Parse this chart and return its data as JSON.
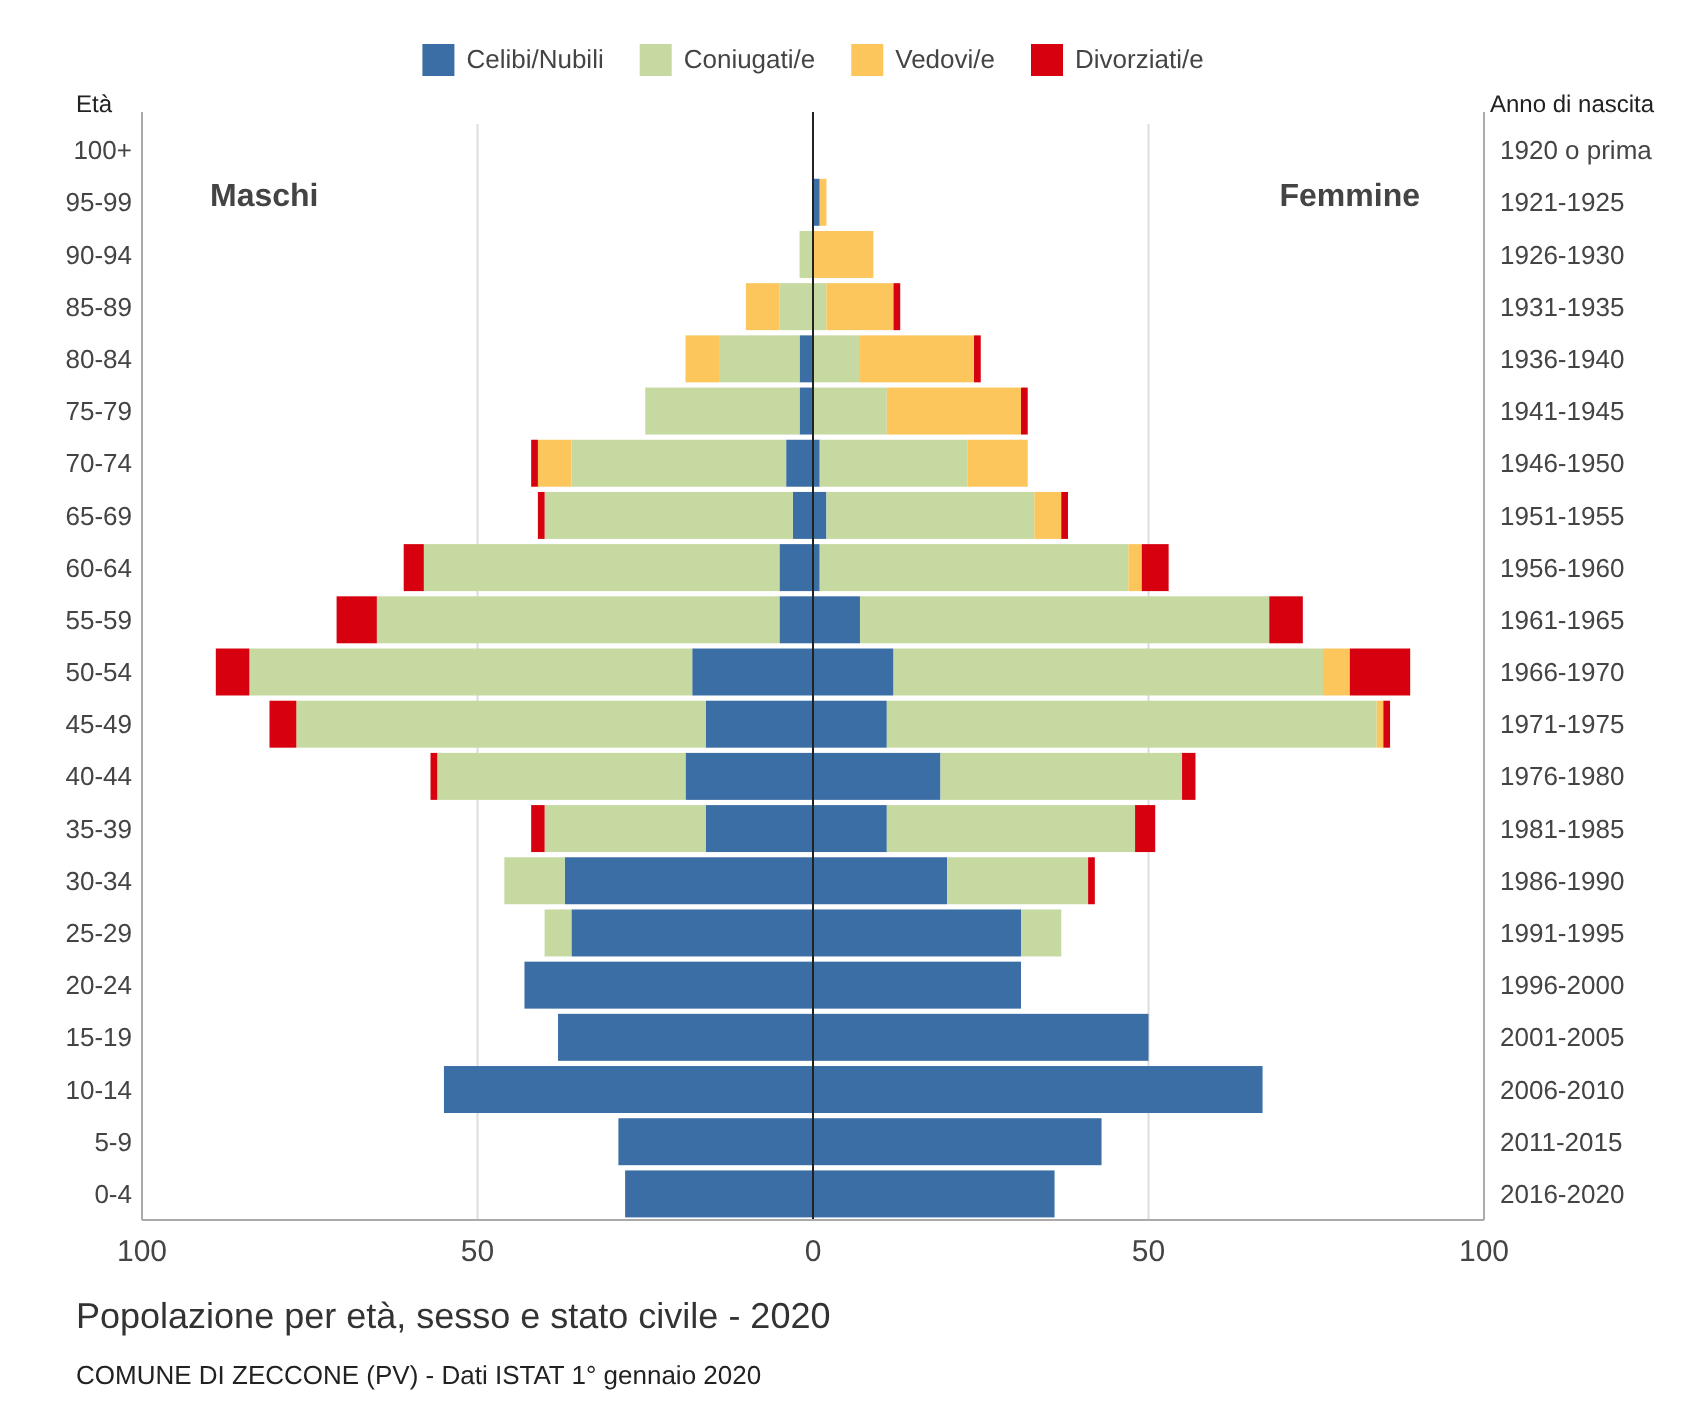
{
  "chart_data": {
    "type": "bar",
    "orientation": "horizontal",
    "stacked": true,
    "title": "Popolazione per età, sesso e stato civile - 2020",
    "annotations": [
      "Maschi",
      "Femmine",
      "COMUNE DI ZECCONE (PV) - Dati ISTAT 1° gennaio 2020"
    ],
    "ylabel": "Età",
    "y2label": "Anno di nascita",
    "categories": [
      "100+",
      "95-99",
      "90-94",
      "85-89",
      "80-84",
      "75-79",
      "70-74",
      "65-69",
      "60-64",
      "55-59",
      "50-54",
      "45-49",
      "40-44",
      "35-39",
      "30-34",
      "25-29",
      "20-24",
      "15-19",
      "10-14",
      "5-9",
      "0-4"
    ],
    "y2_categories": [
      "1920 o prima",
      "1921-1925",
      "1926-1930",
      "1931-1935",
      "1936-1940",
      "1941-1945",
      "1946-1950",
      "1951-1955",
      "1956-1960",
      "1961-1965",
      "1966-1970",
      "1971-1975",
      "1976-1980",
      "1981-1985",
      "1986-1990",
      "1991-1995",
      "1996-2000",
      "2001-2005",
      "2006-2010",
      "2011-2015",
      "2016-2020"
    ],
    "series": [
      {
        "name": "Celibi/Nubili",
        "color": "#3a6ea5",
        "values": [
          0,
          0,
          0,
          0,
          -2,
          -2,
          -4,
          -3,
          -5,
          -5,
          -18,
          -16,
          -19,
          -16,
          -37,
          -36,
          -43,
          -38,
          -55,
          -29,
          -28
        ]
      },
      {
        "name": "Coniugati/e",
        "color": "#c6d9a0",
        "values": [
          0,
          0,
          -2,
          -5,
          -12,
          -23,
          -32,
          -37,
          -53,
          -60,
          -66,
          -61,
          -37,
          -24,
          -9,
          -4,
          0,
          0,
          0,
          0,
          0
        ]
      },
      {
        "name": "Vedovi/e",
        "color": "#fcc65c",
        "values": [
          0,
          0,
          0,
          -5,
          -5,
          0,
          -5,
          0,
          0,
          0,
          0,
          0,
          0,
          0,
          0,
          0,
          0,
          0,
          0,
          0,
          0
        ]
      },
      {
        "name": "Divorziati/e",
        "color": "#d7000f",
        "values": [
          0,
          0,
          0,
          0,
          0,
          0,
          -1,
          -1,
          -3,
          -6,
          -5,
          -4,
          -1,
          -2,
          0,
          0,
          0,
          0,
          0,
          0,
          0
        ]
      },
      {
        "color": "#3a6ea5",
        "values": [
          0,
          1,
          0,
          0,
          0,
          0,
          1,
          2,
          1,
          7,
          12,
          11,
          19,
          11,
          20,
          31,
          31,
          50,
          67,
          43,
          36
        ]
      },
      {
        "color": "#c6d9a0",
        "values": [
          0,
          0,
          0,
          2,
          7,
          11,
          22,
          31,
          46,
          61,
          64,
          73,
          36,
          37,
          21,
          6,
          0,
          0,
          0,
          0,
          0
        ]
      },
      {
        "color": "#fcc65c",
        "values": [
          0,
          1,
          9,
          10,
          17,
          20,
          9,
          4,
          2,
          0,
          4,
          1,
          0,
          0,
          0,
          0,
          0,
          0,
          0,
          0,
          0
        ]
      },
      {
        "color": "#d7000f",
        "values": [
          0,
          0,
          0,
          1,
          1,
          1,
          0,
          1,
          4,
          5,
          9,
          1,
          2,
          3,
          1,
          0,
          0,
          0,
          0,
          0,
          0
        ]
      }
    ],
    "xlim": [
      -100,
      100
    ],
    "xticks": [
      {
        "value": -100,
        "label": "100"
      },
      {
        "value": -50,
        "label": "50"
      },
      0,
      50,
      100
    ],
    "grid": "x",
    "legend": "top"
  }
}
